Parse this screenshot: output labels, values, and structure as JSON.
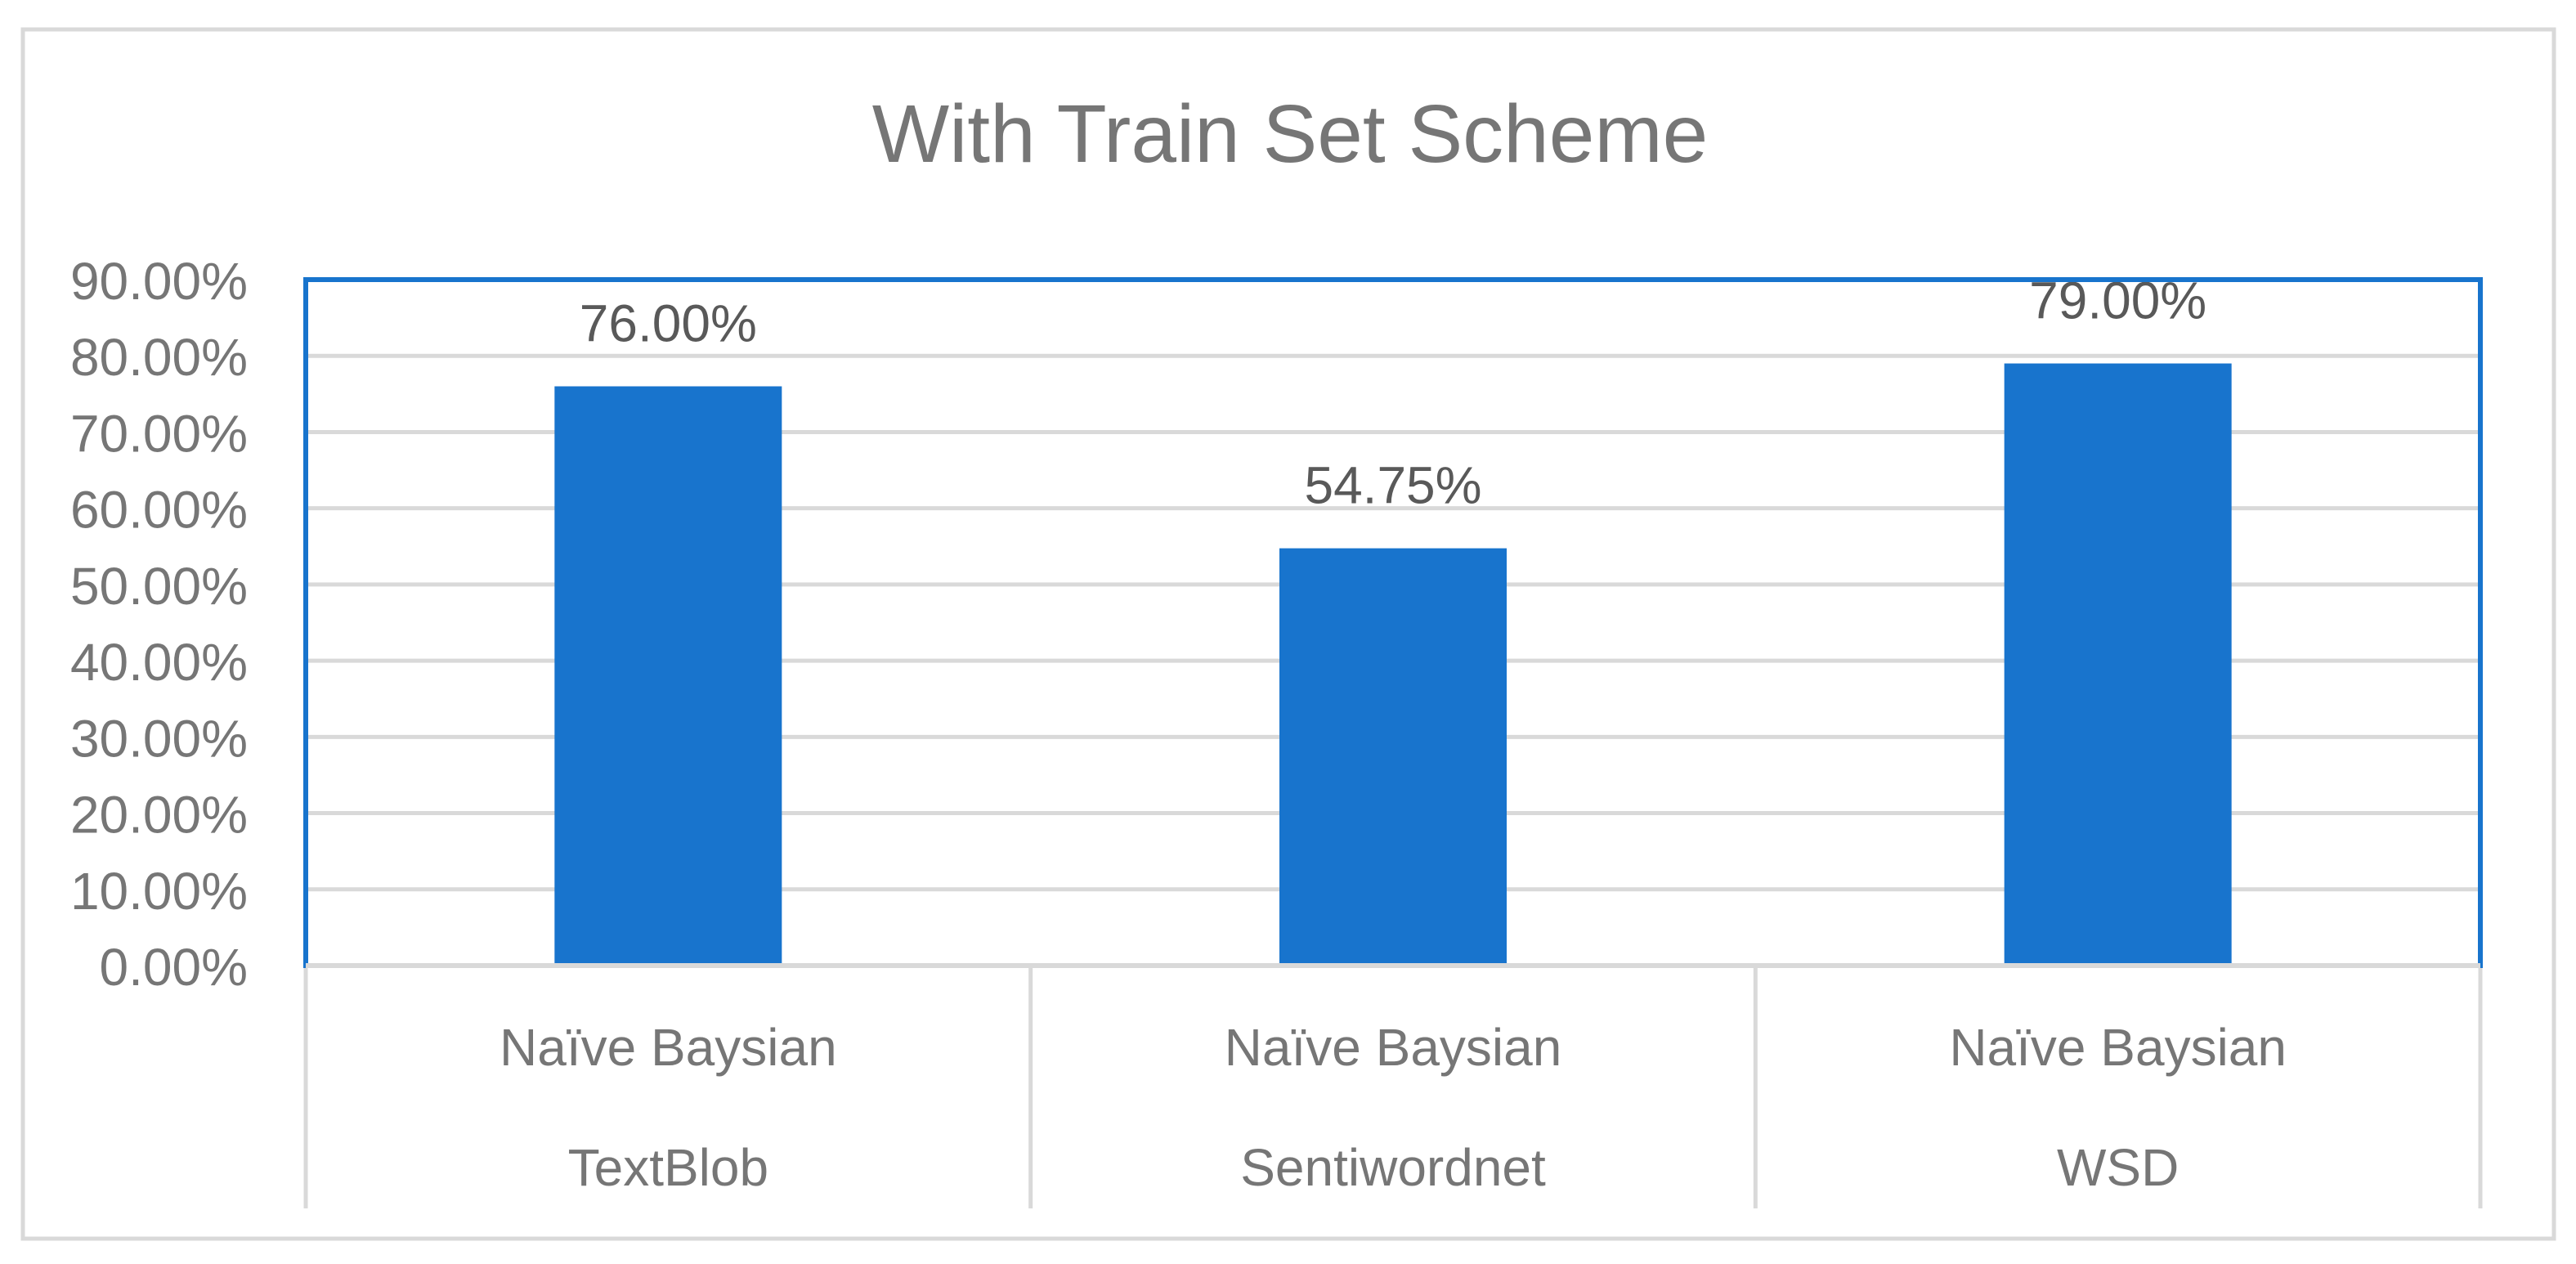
{
  "chart_data": {
    "type": "bar",
    "title": "With Train Set Scheme",
    "categories": [
      [
        "Naïve Baysian",
        "TextBlob"
      ],
      [
        "Naïve Baysian",
        "Sentiwordnet"
      ],
      [
        "Naïve Baysian",
        "WSD"
      ]
    ],
    "values": [
      0.76,
      0.5475,
      0.79
    ],
    "data_labels": [
      "76.00%",
      "54.75%",
      "79.00%"
    ],
    "y_ticks": [
      0,
      0.1,
      0.2,
      0.3,
      0.4,
      0.5,
      0.6,
      0.7,
      0.8,
      0.9
    ],
    "y_tick_labels": [
      "0.00%",
      "10.00%",
      "20.00%",
      "30.00%",
      "40.00%",
      "50.00%",
      "60.00%",
      "70.00%",
      "80.00%",
      "90.00%"
    ],
    "ylim": [
      0,
      0.9
    ],
    "grid": true,
    "legend": "none",
    "colors": {
      "bar": "#1874CD",
      "plot_border": "#1874CD",
      "grid": "#D9D9D9",
      "text": "#767676",
      "frame": "#D9D9D9"
    }
  }
}
